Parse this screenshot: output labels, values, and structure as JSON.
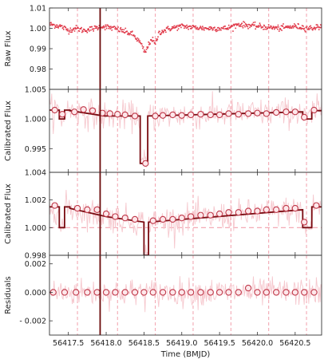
{
  "chart_data": {
    "type": "line",
    "xlabel": "Time (BMJD)",
    "xlim": [
      56417.25,
      56420.85
    ],
    "x_ticks": [
      "56417.5",
      "56418.0",
      "56418.5",
      "56419.0",
      "56419.5",
      "56420.0",
      "56420.5"
    ],
    "x_tick_values": [
      56417.5,
      56418.0,
      56418.5,
      56419.0,
      56419.5,
      56420.0,
      56420.5
    ],
    "event_line_x": 56417.92,
    "colors": {
      "raw": "#e03a4a",
      "noise": "#f6c8ce",
      "model": "#7a0c12",
      "marker_edge": "#c0394a",
      "marker_fill": "#fde7ea",
      "event_line": "#6a0a0a",
      "dashed": "#f2a0ac"
    },
    "panels": [
      {
        "id": "raw",
        "ylabel": "Raw Flux",
        "ylim": [
          0.97,
          1.01
        ],
        "y_ticks": [
          "1.01",
          "1.00",
          "0.99",
          "0.98"
        ],
        "y_tick_values": [
          1.01,
          1.0,
          0.99,
          0.98
        ],
        "dashed_x": [
          56417.62,
          56418.15,
          56418.65,
          56419.15,
          56419.65,
          56420.15,
          56420.65
        ],
        "raw_curve": {
          "x": [
            56417.25,
            56417.4,
            56417.5,
            56417.6,
            56417.7,
            56417.85,
            56417.95,
            56418.1,
            56418.2,
            56418.35,
            56418.45,
            56418.5,
            56418.52,
            56418.55,
            56418.6,
            56418.65,
            56418.7,
            56418.85,
            56419.0,
            56419.3,
            56419.6,
            56419.75,
            56420.0,
            56420.3,
            56420.5,
            56420.7,
            56420.85
          ],
          "y": [
            1.002,
            1.001,
            0.999,
            1.0,
            0.999,
            1.0,
            1.001,
            1.0,
            0.999,
            0.997,
            0.993,
            0.989,
            0.988,
            0.991,
            0.995,
            0.992,
            0.998,
            1.0,
            1.001,
            1.0,
            1.0,
            1.002,
            1.001,
            1.0,
            1.001,
            1.0,
            1.001
          ]
        }
      },
      {
        "id": "cal1",
        "ylabel": "Calibrated Flux",
        "ylim": [
          0.991,
          1.005
        ],
        "y_ticks": [
          "1.005",
          "1.000",
          "0.995"
        ],
        "y_tick_values": [
          1.005,
          1.0,
          0.995
        ],
        "dashed_x": [
          56417.62,
          56418.15,
          56418.65,
          56419.15,
          56419.65,
          56420.15,
          56420.65
        ],
        "model": {
          "x": [
            56417.25,
            56417.38,
            56417.38,
            56417.45,
            56417.45,
            56417.52,
            56417.52,
            56417.98,
            56418.45,
            56418.45,
            56418.55,
            56418.55,
            56420.6,
            56420.6,
            56420.72,
            56420.72,
            56420.85
          ],
          "y": [
            1.0015,
            1.0015,
            1.0,
            1.0,
            1.0015,
            1.0015,
            1.0014,
            1.0005,
            1.0005,
            0.9925,
            0.9925,
            1.0005,
            1.0012,
            1.0,
            1.0,
            1.0014,
            1.0014
          ]
        },
        "markers": {
          "x": [
            56417.32,
            56417.42,
            56417.58,
            56417.7,
            56417.82,
            56417.95,
            56418.05,
            56418.15,
            56418.25,
            56418.38,
            56418.52,
            56418.65,
            56418.75,
            56418.88,
            56419.0,
            56419.12,
            56419.25,
            56419.38,
            56419.5,
            56419.62,
            56419.75,
            56419.88,
            56420.0,
            56420.12,
            56420.25,
            56420.38,
            56420.5,
            56420.62,
            56420.75
          ],
          "y": [
            1.0015,
            1.0008,
            1.0012,
            1.0016,
            1.0014,
            1.001,
            1.0009,
            1.0008,
            1.0007,
            1.0005,
            0.9925,
            1.0005,
            1.0006,
            1.0007,
            1.0006,
            1.0007,
            1.0008,
            1.0007,
            1.0007,
            1.0009,
            1.0008,
            1.0009,
            1.001,
            1.0009,
            1.0011,
            1.0012,
            1.0012,
            1.0003,
            1.0015
          ]
        }
      },
      {
        "id": "cal2",
        "ylabel": "Calibrated Flux",
        "ylim": [
          0.998,
          1.004
        ],
        "y_ticks": [
          "1.004",
          "1.002",
          "1.000",
          "0.998"
        ],
        "y_tick_values": [
          1.004,
          1.002,
          1.0,
          0.998
        ],
        "dashed_x": [
          56417.62,
          56418.15,
          56418.65,
          56419.15,
          56419.65,
          56420.15,
          56420.65
        ],
        "baseline": 1.0,
        "model": {
          "x": [
            56417.25,
            56417.38,
            56417.38,
            56417.45,
            56417.45,
            56417.52,
            56417.52,
            56418.0,
            56418.5,
            56418.5,
            56418.56,
            56418.56,
            56420.6,
            56420.6,
            56420.72,
            56420.72,
            56420.85
          ],
          "y": [
            1.0015,
            1.0015,
            1.0,
            1.0,
            1.0015,
            1.0015,
            1.0014,
            1.0008,
            1.0004,
            0.998,
            0.998,
            1.0004,
            1.0013,
            1.0,
            1.0,
            1.0015,
            1.0015
          ]
        },
        "markers": {
          "x": [
            56417.32,
            56417.62,
            56417.75,
            56417.88,
            56418.0,
            56418.12,
            56418.25,
            56418.38,
            56418.62,
            56418.75,
            56418.88,
            56419.0,
            56419.12,
            56419.25,
            56419.38,
            56419.5,
            56419.62,
            56419.75,
            56419.88,
            56420.0,
            56420.12,
            56420.25,
            56420.38,
            56420.5,
            56420.62,
            56420.78
          ],
          "y": [
            1.0016,
            1.0014,
            1.0013,
            1.0013,
            1.001,
            1.0008,
            1.0007,
            1.0006,
            1.0005,
            1.0006,
            1.0006,
            1.0007,
            1.0008,
            1.0009,
            1.0009,
            1.001,
            1.0011,
            1.0011,
            1.0012,
            1.0012,
            1.0013,
            1.0013,
            1.0014,
            1.0014,
            1.0004,
            1.0016
          ]
        }
      },
      {
        "id": "resid",
        "ylabel": "Residuals",
        "ylim": [
          -0.003,
          0.0026
        ],
        "y_ticks": [
          "0.002",
          "0.000",
          "- 0.002"
        ],
        "y_tick_values": [
          0.002,
          0.0,
          -0.002
        ],
        "dashed_x": [
          56417.62,
          56418.15,
          56418.65,
          56419.15,
          56419.65,
          56420.15,
          56420.65
        ],
        "markers": {
          "x": [
            56417.3,
            56417.45,
            56417.6,
            56417.75,
            56417.88,
            56418.0,
            56418.12,
            56418.25,
            56418.38,
            56418.5,
            56418.62,
            56418.75,
            56418.88,
            56419.0,
            56419.12,
            56419.25,
            56419.38,
            56419.5,
            56419.62,
            56419.75,
            56419.88,
            56420.0,
            56420.12,
            56420.25,
            56420.38,
            56420.5,
            56420.62,
            56420.75
          ],
          "y": [
            0.0,
            0.0,
            0.0,
            0.0,
            0.0,
            0.0,
            0.0,
            0.0,
            0.0,
            0.0,
            0.0,
            0.0,
            0.0,
            0.0,
            0.0,
            0.0,
            0.0,
            0.0,
            0.0,
            0.0,
            0.0003,
            0.0,
            0.0,
            0.0,
            0.0,
            0.0,
            0.0,
            0.0
          ]
        }
      }
    ]
  }
}
